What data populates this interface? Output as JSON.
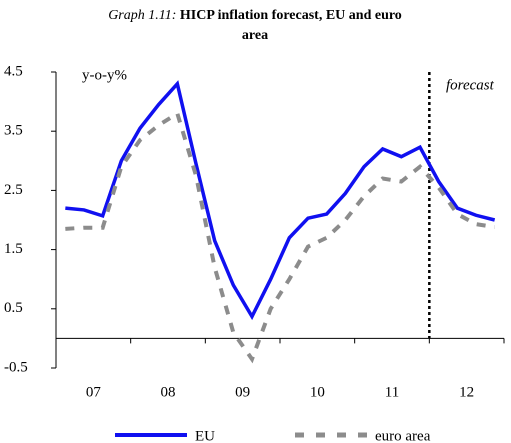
{
  "chart_data": {
    "type": "line",
    "title_prefix": "Graph 1.11:",
    "title_line1": "HICP inflation forecast, EU and euro",
    "title_line2": "area",
    "y_unit_label": "y-o-y%",
    "annotation": "forecast",
    "year_labels": [
      "07",
      "08",
      "09",
      "10",
      "11",
      "12"
    ],
    "series": [
      {
        "name": "EU",
        "color": "#1010f0",
        "dash": false,
        "values": [
          2.2,
          2.17,
          2.07,
          3.0,
          3.55,
          3.95,
          4.3,
          2.95,
          1.65,
          0.9,
          0.37,
          1.0,
          1.7,
          2.03,
          2.1,
          2.45,
          2.9,
          3.2,
          3.07,
          3.23,
          2.65,
          2.2,
          2.08,
          2.0
        ]
      },
      {
        "name": "euro area",
        "color": "#8c8c8c",
        "dash": true,
        "values": [
          1.85,
          1.87,
          1.87,
          2.9,
          3.35,
          3.6,
          3.8,
          2.75,
          1.2,
          0.1,
          -0.35,
          0.5,
          1.0,
          1.55,
          1.7,
          2.0,
          2.4,
          2.7,
          2.65,
          2.9,
          2.55,
          2.1,
          1.93,
          1.88
        ]
      }
    ],
    "ylim": [
      -0.5,
      4.5
    ],
    "yticks": [
      -0.5,
      0.5,
      1.5,
      2.5,
      3.5,
      4.5
    ],
    "grid": false
  }
}
